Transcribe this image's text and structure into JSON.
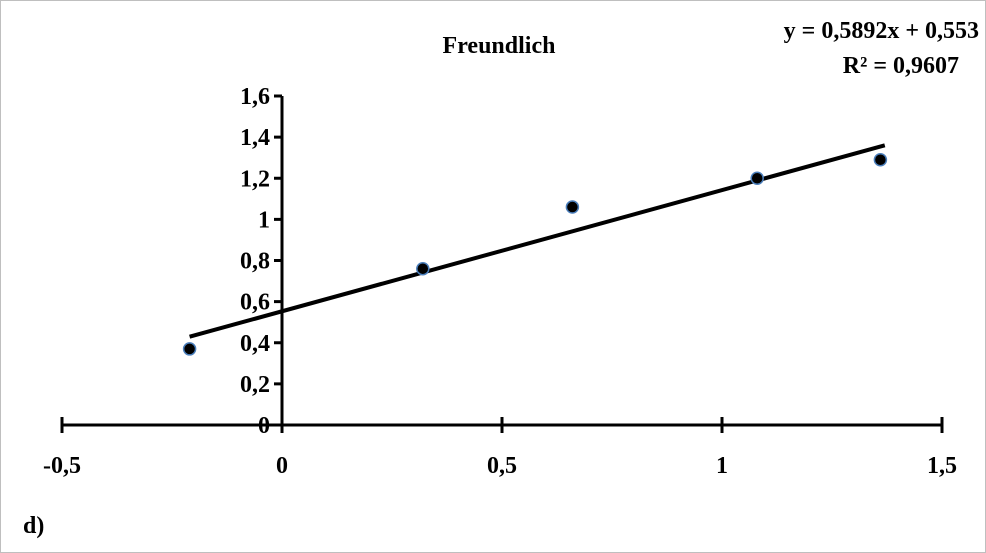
{
  "chart_data": {
    "type": "scatter",
    "title": "Freundlich",
    "panel_label": "d)",
    "trendline": {
      "equation": "y = 0,5892x + 0,553",
      "r_squared": "R² = 0,9607",
      "slope": 0.5892,
      "intercept": 0.553,
      "x_range": [
        -0.21,
        1.37
      ]
    },
    "points": [
      {
        "x": -0.21,
        "y": 0.37
      },
      {
        "x": 0.32,
        "y": 0.76
      },
      {
        "x": 0.66,
        "y": 1.06
      },
      {
        "x": 1.08,
        "y": 1.2
      },
      {
        "x": 1.36,
        "y": 1.29
      }
    ],
    "xlim": [
      -0.5,
      1.5
    ],
    "ylim": [
      0,
      1.6
    ],
    "x_ticks": [
      {
        "v": -0.5,
        "label": "-0,5"
      },
      {
        "v": 0,
        "label": "0"
      },
      {
        "v": 0.5,
        "label": "0,5"
      },
      {
        "v": 1,
        "label": "1"
      },
      {
        "v": 1.5,
        "label": "1,5"
      }
    ],
    "y_ticks": [
      {
        "v": 0,
        "label": "0"
      },
      {
        "v": 0.2,
        "label": "0,2"
      },
      {
        "v": 0.4,
        "label": "0,4"
      },
      {
        "v": 0.6,
        "label": "0,6"
      },
      {
        "v": 0.8,
        "label": "0,8"
      },
      {
        "v": 1,
        "label": "1"
      },
      {
        "v": 1.2,
        "label": "1,2"
      },
      {
        "v": 1.4,
        "label": "1,4"
      },
      {
        "v": 1.6,
        "label": "1,6"
      }
    ],
    "grid": false,
    "legend": "none",
    "colors": {
      "marker_fill": "#000000",
      "marker_edge": "#4a7ebb",
      "line": "#000000",
      "axis": "#000000"
    }
  }
}
